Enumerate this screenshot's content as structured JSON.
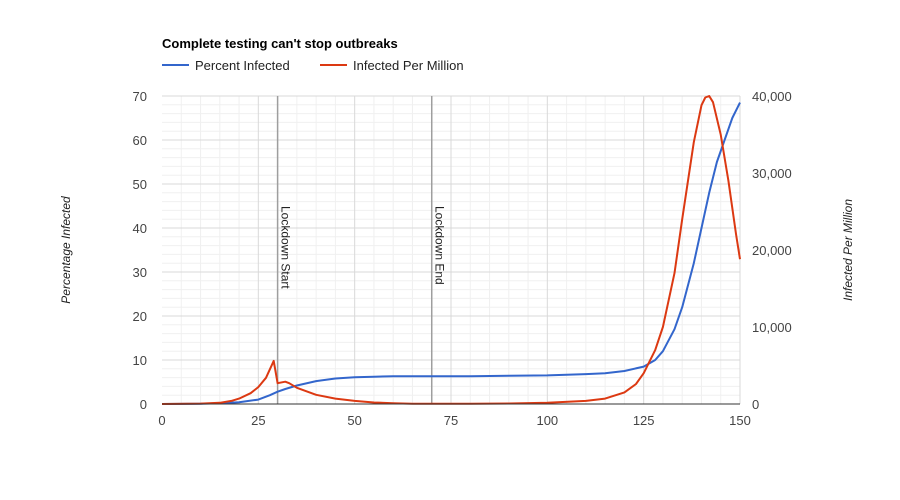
{
  "chart_data": {
    "type": "line",
    "title": "Complete testing can't stop outbreaks",
    "legend_position": "top-left",
    "grid": true,
    "xlabel": "",
    "x_ticks": [
      "0",
      "25",
      "50",
      "75",
      "100",
      "125",
      "150"
    ],
    "xlim": [
      0,
      150
    ],
    "ylabel_left": "Percentage Infected",
    "ylim_left": [
      0,
      70
    ],
    "y_ticks_left": [
      "0",
      "10",
      "20",
      "30",
      "40",
      "50",
      "60",
      "70"
    ],
    "ylabel_right": "Infected Per Million",
    "ylim_right": [
      0,
      40000
    ],
    "y_ticks_right": [
      "0",
      "10,000",
      "20,000",
      "30,000",
      "40,000"
    ],
    "series": [
      {
        "name": "Percent Infected",
        "axis": "left",
        "color": "#3366cc",
        "points": [
          [
            0,
            0
          ],
          [
            10,
            0.05
          ],
          [
            15,
            0.15
          ],
          [
            20,
            0.4
          ],
          [
            25,
            1.0
          ],
          [
            28,
            2.0
          ],
          [
            30,
            2.8
          ],
          [
            32,
            3.4
          ],
          [
            35,
            4.2
          ],
          [
            40,
            5.2
          ],
          [
            45,
            5.8
          ],
          [
            50,
            6.1
          ],
          [
            55,
            6.2
          ],
          [
            60,
            6.3
          ],
          [
            70,
            6.3
          ],
          [
            80,
            6.3
          ],
          [
            90,
            6.4
          ],
          [
            100,
            6.5
          ],
          [
            110,
            6.8
          ],
          [
            115,
            7.0
          ],
          [
            120,
            7.5
          ],
          [
            125,
            8.5
          ],
          [
            128,
            10
          ],
          [
            130,
            12
          ],
          [
            133,
            17
          ],
          [
            135,
            22
          ],
          [
            138,
            32
          ],
          [
            140,
            40
          ],
          [
            142,
            48
          ],
          [
            144,
            55
          ],
          [
            146,
            60
          ],
          [
            148,
            65
          ],
          [
            150,
            68.5
          ]
        ]
      },
      {
        "name": "Infected Per Million",
        "axis": "right",
        "color": "#dc3912",
        "points": [
          [
            0,
            0
          ],
          [
            10,
            50
          ],
          [
            15,
            150
          ],
          [
            18,
            400
          ],
          [
            20,
            700
          ],
          [
            23,
            1400
          ],
          [
            25,
            2200
          ],
          [
            27,
            3400
          ],
          [
            29,
            5600
          ],
          [
            30,
            2700
          ],
          [
            32,
            2900
          ],
          [
            33,
            2700
          ],
          [
            35,
            2100
          ],
          [
            40,
            1200
          ],
          [
            45,
            700
          ],
          [
            50,
            400
          ],
          [
            55,
            200
          ],
          [
            60,
            100
          ],
          [
            65,
            40
          ],
          [
            70,
            20
          ],
          [
            80,
            20
          ],
          [
            90,
            60
          ],
          [
            100,
            150
          ],
          [
            110,
            400
          ],
          [
            115,
            700
          ],
          [
            120,
            1500
          ],
          [
            123,
            2600
          ],
          [
            125,
            4000
          ],
          [
            128,
            7000
          ],
          [
            130,
            10000
          ],
          [
            133,
            17000
          ],
          [
            135,
            24000
          ],
          [
            138,
            34000
          ],
          [
            140,
            38800
          ],
          [
            141,
            39800
          ],
          [
            142,
            40000
          ],
          [
            143,
            39200
          ],
          [
            145,
            35000
          ],
          [
            147,
            29000
          ],
          [
            149,
            22000
          ],
          [
            150,
            18800
          ]
        ]
      }
    ],
    "annotations": [
      {
        "x": 30,
        "label": "Lockdown Start"
      },
      {
        "x": 70,
        "label": "Lockdown End"
      }
    ]
  }
}
